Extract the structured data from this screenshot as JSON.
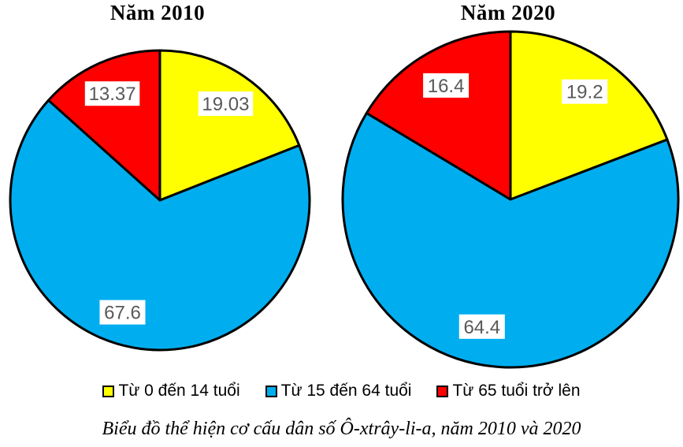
{
  "chart_data": [
    {
      "type": "pie",
      "title": "Năm 2010",
      "categories": [
        "Từ 0 đến 14 tuổi",
        "Từ 15 đến 64 tuổi",
        "Từ 65 tuổi trở lên"
      ],
      "values": [
        19.03,
        67.6,
        13.37
      ],
      "labels": [
        "19.03",
        "67.6",
        "13.37"
      ],
      "colors": [
        "#FFFF00",
        "#00AEEF",
        "#FF0000"
      ],
      "start_angle": "12-oclock",
      "direction": "clockwise"
    },
    {
      "type": "pie",
      "title": "Năm 2020",
      "categories": [
        "Từ 0 đến 14 tuổi",
        "Từ 15 đến 64 tuổi",
        "Từ 65 tuổi trở lên"
      ],
      "values": [
        19.2,
        64.4,
        16.4
      ],
      "labels": [
        "19.2",
        "64.4",
        "16.4"
      ],
      "colors": [
        "#FFFF00",
        "#00AEEF",
        "#FF0000"
      ],
      "start_angle": "12-oclock",
      "direction": "clockwise"
    }
  ],
  "legend": {
    "items": [
      {
        "label": "Từ 0 đến 14 tuổi",
        "color": "#FFFF00"
      },
      {
        "label": "Từ 15 đến 64 tuổi",
        "color": "#00AEEF"
      },
      {
        "label": "Từ 65 tuổi trở lên",
        "color": "#FF0000"
      }
    ]
  },
  "caption": "Biểu đồ thể hiện cơ cấu dân số Ô-xtrây-li-a, năm 2010 và 2020",
  "style": {
    "slice_outline_color": "#000000",
    "data_label_text_color": "#595959",
    "data_label_box_color": "#FFFFFF"
  }
}
